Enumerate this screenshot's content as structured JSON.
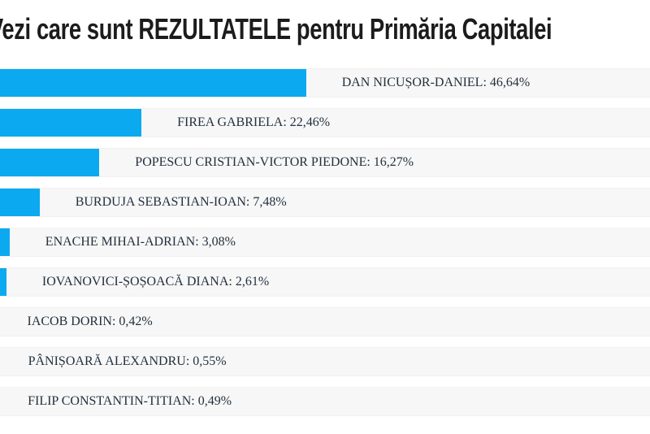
{
  "page": {
    "title": "Vezi care sunt REZULTATELE pentru Primăria Capitalei"
  },
  "colors": {
    "background": "#ffffff",
    "bar": "#0ba9f0",
    "row_background": "#f7f7f7",
    "title_text": "#1c1c1c",
    "label_text": "#22303e"
  },
  "chart_data": {
    "type": "bar",
    "orientation": "horizontal",
    "title": "Vezi care sunt REZULTATELE pentru Primăria Capitalei",
    "unit": "%",
    "decimal_separator": ",",
    "xlim": [
      0,
      100
    ],
    "grid": false,
    "legend": "none",
    "categories": [
      "DAN NICUȘOR-DANIEL",
      "FIREA GABRIELA",
      "POPESCU CRISTIAN-VICTOR PIEDONE",
      "BURDUJA SEBASTIAN-IOAN",
      "ENACHE MIHAI-ADRIAN",
      "IOVANOVICI-ȘOȘOACĂ DIANA",
      "IACOB DORIN",
      "PÂNIȘOARĂ ALEXANDRU",
      "FILIP CONSTANTIN-TITIAN"
    ],
    "values": [
      46.64,
      22.46,
      16.27,
      7.48,
      3.08,
      2.61,
      0.42,
      0.55,
      0.49
    ],
    "rows": [
      {
        "candidate": "DAN NICUȘOR-DANIEL",
        "value": 46.64,
        "label": "DAN NICUȘOR-DANIEL: 46,64%"
      },
      {
        "candidate": "FIREA GABRIELA",
        "value": 22.46,
        "label": "FIREA GABRIELA: 22,46%"
      },
      {
        "candidate": "POPESCU CRISTIAN-VICTOR PIEDONE",
        "value": 16.27,
        "label": "POPESCU CRISTIAN-VICTOR PIEDONE: 16,27%"
      },
      {
        "candidate": "BURDUJA SEBASTIAN-IOAN",
        "value": 7.48,
        "label": "BURDUJA SEBASTIAN-IOAN: 7,48%"
      },
      {
        "candidate": "ENACHE MIHAI-ADRIAN",
        "value": 3.08,
        "label": "ENACHE MIHAI-ADRIAN: 3,08%"
      },
      {
        "candidate": "IOVANOVICI-ȘOȘOACĂ DIANA",
        "value": 2.61,
        "label": "IOVANOVICI-ȘOȘOACĂ DIANA: 2,61%"
      },
      {
        "candidate": "IACOB DORIN",
        "value": 0.42,
        "label": "IACOB DORIN: 0,42%"
      },
      {
        "candidate": "PÂNIȘOARĂ ALEXANDRU",
        "value": 0.55,
        "label": "PÂNIȘOARĂ ALEXANDRU: 0,55%"
      },
      {
        "candidate": "FILIP CONSTANTIN-TITIAN",
        "value": 0.49,
        "label": "FILIP CONSTANTIN-TITIAN: 0,49%"
      }
    ]
  }
}
